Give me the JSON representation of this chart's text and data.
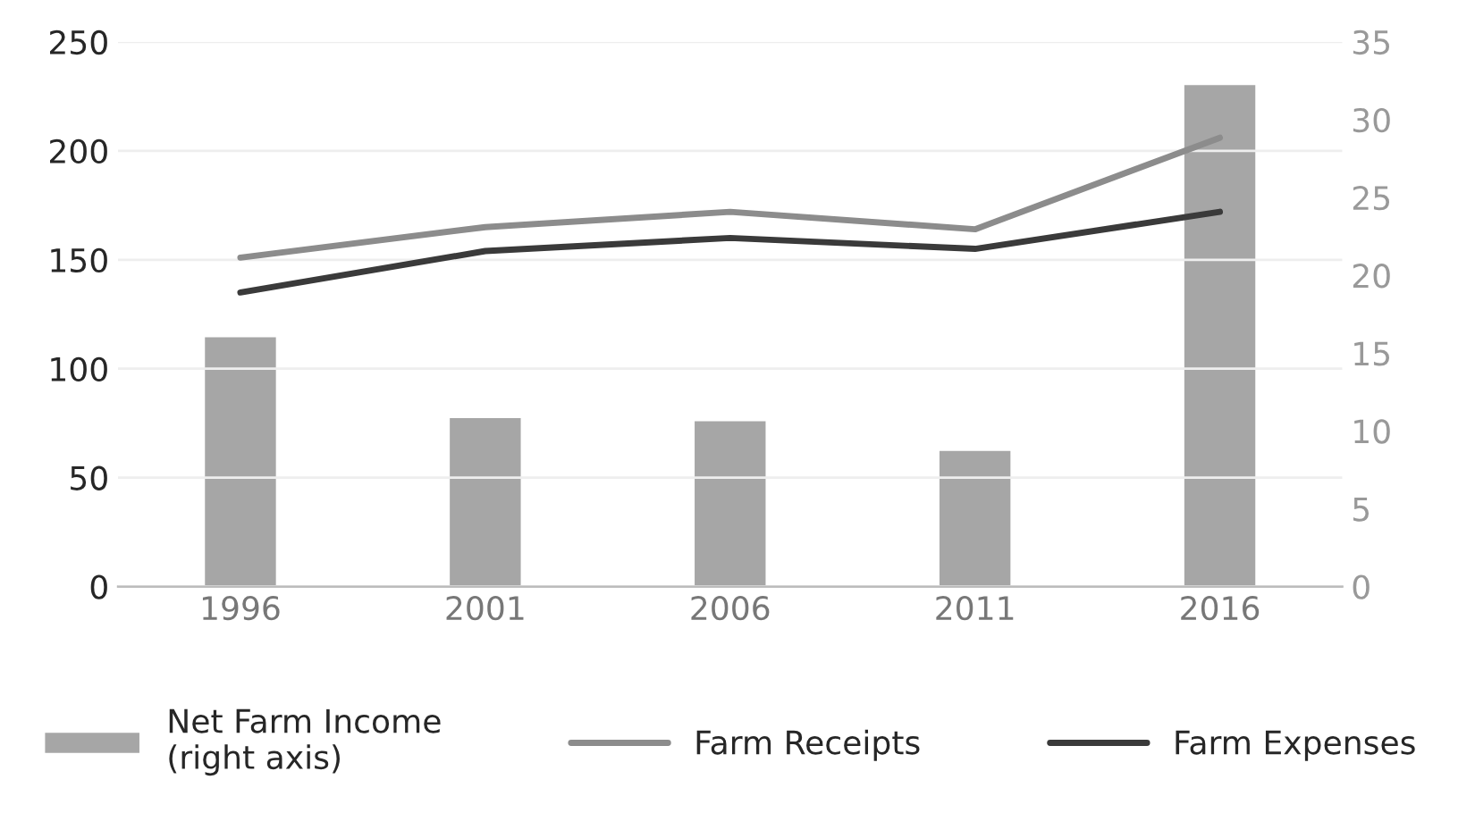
{
  "chart_data": {
    "type": "bar",
    "categories": [
      "1996",
      "2001",
      "2006",
      "2011",
      "2016"
    ],
    "series": [
      {
        "name": "Net Farm Income\n(right axis)",
        "axis": "y2",
        "color": "#a6a6a6",
        "values": [
          16.1,
          10.9,
          10.7,
          8.8,
          32.3
        ]
      },
      {
        "name": "Farm Receipts",
        "type": "line",
        "color": "#8c8c8c",
        "values": [
          151,
          165,
          172,
          164,
          206
        ]
      },
      {
        "name": "Farm Expenses",
        "type": "line",
        "color": "#3a3a3a",
        "values": [
          135,
          154,
          160,
          155,
          172
        ]
      }
    ],
    "ylim": [
      0,
      250
    ],
    "yticks": [
      0,
      50,
      100,
      150,
      200,
      250
    ],
    "y2lim": [
      0,
      35
    ],
    "y2ticks": [
      0,
      5,
      10,
      15,
      20,
      25,
      30,
      35
    ],
    "grid": "y",
    "legend": "bottom"
  }
}
